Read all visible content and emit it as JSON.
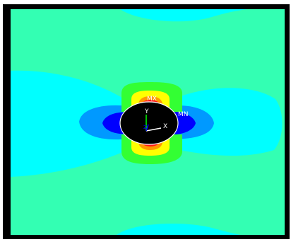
{
  "viewport": {
    "background": "#000000",
    "frame": "#ffffff"
  },
  "colors": {
    "band_cyan": "#00ffff",
    "band_mint": "#33ffb3",
    "band_green": "#33ff33",
    "band_yellow": "#ffff00",
    "band_orange": "#ff9900",
    "band_red": "#ff1a1a",
    "band_azure": "#0099ff",
    "band_blue": "#0000ff",
    "hole": "#000000",
    "triad_y": "#00ff00",
    "triad_x": "#ffffff",
    "triad_z": "#0000ff"
  },
  "labels": {
    "max": "MX",
    "min": "MN",
    "axis_y": "Y",
    "axis_x": "X",
    "axis_z": "Z"
  }
}
